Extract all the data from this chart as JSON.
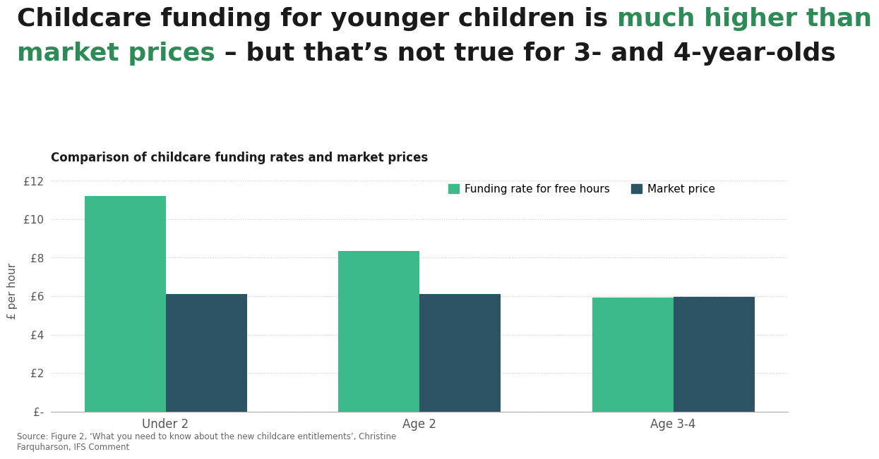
{
  "subtitle": "Comparison of childcare funding rates and market prices",
  "categories": [
    "Under 2",
    "Age 2",
    "Age 3-4"
  ],
  "funding_values": [
    11.22,
    8.35,
    5.92
  ],
  "market_values": [
    6.1,
    6.1,
    5.97
  ],
  "funding_color": "#3dba8a",
  "market_color": "#2d5465",
  "ylabel": "£ per hour",
  "yticks": [
    0,
    2,
    4,
    6,
    8,
    10,
    12
  ],
  "ytick_labels": [
    "£-",
    "£2",
    "£4",
    "£6",
    "£8",
    "£10",
    "£12"
  ],
  "ylim": [
    0,
    12.5
  ],
  "legend_funding": "Funding rate for free hours",
  "legend_market": "Market price",
  "source_text": "Source: Figure 2, ‘What you need to know about the new childcare entitlements’, Christine\nFarquharson, IFS Comment",
  "bg_color": "#ffffff",
  "title_black": "#1a1a1a",
  "title_green": "#2e8b57",
  "bar_width": 0.32,
  "title_line1_black": "Childcare funding for younger children is ",
  "title_line1_green": "much higher than",
  "title_line2_green": "market prices",
  "title_line2_black": " – but that’s not true for 3- and 4-year-olds",
  "title_fontsize": 26,
  "grid_color": "#cccccc",
  "tick_color": "#555555",
  "bottom_spine_color": "#aaaaaa"
}
